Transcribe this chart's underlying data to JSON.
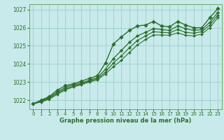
{
  "title": "",
  "xlabel": "Graphe pression niveau de la mer (hPa)",
  "ylabel": "",
  "bg_color": "#c8eaea",
  "grid_color": "#9ecece",
  "line_color": "#2d6e2d",
  "xlim": [
    -0.5,
    23.5
  ],
  "ylim": [
    1021.5,
    1027.3
  ],
  "yticks": [
    1022,
    1023,
    1024,
    1025,
    1026,
    1027
  ],
  "xticks": [
    0,
    1,
    2,
    3,
    4,
    5,
    6,
    7,
    8,
    9,
    10,
    11,
    12,
    13,
    14,
    15,
    16,
    17,
    18,
    19,
    20,
    21,
    22,
    23
  ],
  "series": [
    {
      "x": [
        0,
        1,
        2,
        3,
        4,
        5,
        6,
        7,
        8,
        9,
        10,
        11,
        12,
        13,
        14,
        15,
        16,
        17,
        18,
        19,
        20,
        21,
        22,
        23
      ],
      "y": [
        1021.8,
        1022.0,
        1022.2,
        1022.55,
        1022.8,
        1022.9,
        1023.05,
        1023.2,
        1023.35,
        1024.05,
        1025.1,
        1025.5,
        1025.85,
        1026.1,
        1026.15,
        1026.35,
        1026.1,
        1026.05,
        1026.35,
        1026.15,
        1026.0,
        1026.0,
        1026.55,
        1027.05
      ],
      "marker": "D",
      "markersize": 2.8,
      "linewidth": 1.0
    },
    {
      "x": [
        0,
        1,
        2,
        3,
        4,
        5,
        6,
        7,
        8,
        9,
        10,
        11,
        12,
        13,
        14,
        15,
        16,
        17,
        18,
        19,
        20,
        21,
        22,
        23
      ],
      "y": [
        1021.8,
        1021.95,
        1022.15,
        1022.45,
        1022.7,
        1022.85,
        1022.95,
        1023.1,
        1023.25,
        1023.7,
        1024.3,
        1024.75,
        1025.2,
        1025.55,
        1025.75,
        1025.95,
        1025.9,
        1025.85,
        1026.1,
        1025.95,
        1025.85,
        1025.9,
        1026.3,
        1026.85
      ],
      "marker": "D",
      "markersize": 2.4,
      "linewidth": 0.9
    },
    {
      "x": [
        0,
        1,
        2,
        3,
        4,
        5,
        6,
        7,
        8,
        9,
        10,
        11,
        12,
        13,
        14,
        15,
        16,
        17,
        18,
        19,
        20,
        21,
        22,
        23
      ],
      "y": [
        1021.8,
        1021.92,
        1022.1,
        1022.38,
        1022.62,
        1022.78,
        1022.9,
        1023.05,
        1023.18,
        1023.55,
        1024.05,
        1024.45,
        1024.9,
        1025.3,
        1025.55,
        1025.78,
        1025.75,
        1025.72,
        1025.9,
        1025.75,
        1025.7,
        1025.78,
        1026.15,
        1026.7
      ],
      "marker": "D",
      "markersize": 2.2,
      "linewidth": 0.85
    },
    {
      "x": [
        0,
        1,
        2,
        3,
        4,
        5,
        6,
        7,
        8,
        9,
        10,
        11,
        12,
        13,
        14,
        15,
        16,
        17,
        18,
        19,
        20,
        21,
        22,
        23
      ],
      "y": [
        1021.8,
        1021.9,
        1022.05,
        1022.32,
        1022.56,
        1022.73,
        1022.85,
        1023.0,
        1023.12,
        1023.45,
        1023.85,
        1024.2,
        1024.65,
        1025.05,
        1025.35,
        1025.6,
        1025.6,
        1025.58,
        1025.72,
        1025.58,
        1025.55,
        1025.65,
        1026.0,
        1026.55
      ],
      "marker": "D",
      "markersize": 2.0,
      "linewidth": 0.8
    }
  ]
}
